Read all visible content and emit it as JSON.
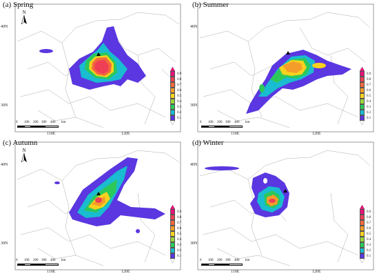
{
  "panels": [
    {
      "title": "(a) Spring",
      "lat_top": "40N",
      "lat_bottom": "30N",
      "lon_left": "110E",
      "lon_right": "120E"
    },
    {
      "title": "(b) Summer",
      "lat_top": "40N",
      "lat_bottom": "30N",
      "lon_left": "110E",
      "lon_right": "120E"
    },
    {
      "title": "(c) Autumn",
      "lat_top": "40N",
      "lat_bottom": "30N",
      "lon_left": "110E",
      "lon_right": "120E"
    },
    {
      "title": "(d) Winter",
      "lat_top": "40N",
      "lat_bottom": "30N",
      "lon_left": "110E",
      "lon_right": "120E"
    }
  ],
  "north_label": "N",
  "scale_labels": [
    "0",
    "100",
    "200",
    "300",
    "400",
    "km"
  ],
  "legend": [
    {
      "label": "0.9",
      "color": "#e8127a"
    },
    {
      "label": "0.8",
      "color": "#ee3f55"
    },
    {
      "label": "0.7",
      "color": "#f26a3d"
    },
    {
      "label": "0.6",
      "color": "#f59d2a"
    },
    {
      "label": "0.5",
      "color": "#f8d21e"
    },
    {
      "label": "0.4",
      "color": "#9bd63c"
    },
    {
      "label": "0.3",
      "color": "#2cc85a"
    },
    {
      "label": "0.2",
      "color": "#19bcd0"
    },
    {
      "label": "0.1",
      "color": "#5a37e0"
    }
  ],
  "legend_bottom_color": "#ffffff",
  "colors": {
    "land_line": "#aaaaaa",
    "coast": "#888888"
  }
}
